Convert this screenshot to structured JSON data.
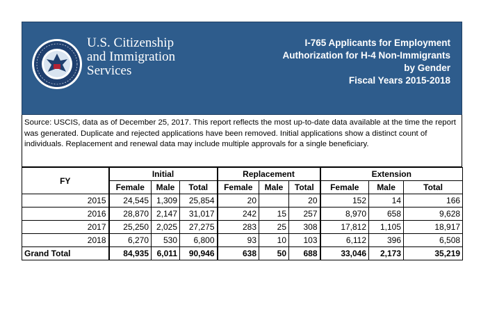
{
  "banner": {
    "agency_line1": "U.S. Citizenship",
    "agency_line2": "and Immigration",
    "agency_line3": "Services",
    "title_line1": "I-765 Applicants for Employment",
    "title_line2": "Authorization for H-4 Non-Immigrants",
    "title_line3": "by Gender",
    "title_line4": "Fiscal Years 2015-2018",
    "seal_text": "DEPARTMENT OF HOMELAND SECURITY",
    "colors": {
      "banner_bg": "#2e5c8c",
      "seal_ring": "#1f3f6e",
      "seal_bg": "#ffffff"
    }
  },
  "source_note": "Source:  USCIS, data as of December 25, 2017. This report reflects the most up-to-date data available at the time the report was generated. Duplicate and rejected applications have been removed. Initial applications show a distinct count of individuals. Replacement and renewal data may include multiple approvals for a single beneficiary.",
  "table": {
    "fy_header": "FY",
    "groups": [
      "Initial",
      "Replacement",
      "Extension"
    ],
    "subheaders": [
      "Female",
      "Male",
      "Total",
      "Female",
      "Male",
      "Total",
      "Female",
      "Male",
      "Total"
    ],
    "rows": [
      {
        "fy": "2015",
        "cells": [
          "24,545",
          "1,309",
          "25,854",
          "20",
          "",
          "20",
          "152",
          "14",
          "166"
        ]
      },
      {
        "fy": "2016",
        "cells": [
          "28,870",
          "2,147",
          "31,017",
          "242",
          "15",
          "257",
          "8,970",
          "658",
          "9,628"
        ]
      },
      {
        "fy": "2017",
        "cells": [
          "25,250",
          "2,025",
          "27,275",
          "283",
          "25",
          "308",
          "17,812",
          "1,105",
          "18,917"
        ]
      },
      {
        "fy": "2018",
        "cells": [
          "6,270",
          "530",
          "6,800",
          "93",
          "10",
          "103",
          "6,112",
          "396",
          "6,508"
        ]
      }
    ],
    "grand_total": {
      "label": "Grand Total",
      "cells": [
        "84,935",
        "6,011",
        "90,946",
        "638",
        "50",
        "688",
        "33,046",
        "2,173",
        "35,219"
      ]
    }
  }
}
